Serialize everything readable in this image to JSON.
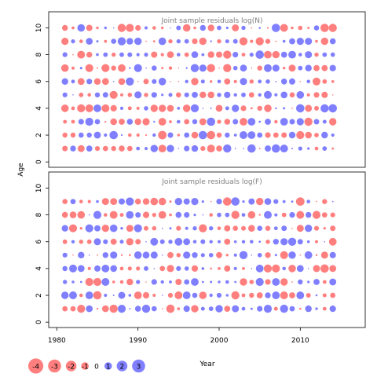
{
  "colors": {
    "positive": "#0000FF",
    "negative": "#FF0000",
    "frame": "#000000",
    "title": "#808080"
  },
  "chart_data": [
    {
      "type": "scatter",
      "subtype": "bubble",
      "title": "Joint sample residuals log(N)",
      "ylabel": "Age",
      "xlabel": "",
      "x_years": [
        1981,
        2014
      ],
      "y_ages": [
        1,
        10
      ],
      "xlim": [
        1979,
        2018
      ],
      "ylim": [
        -0.4,
        11.2
      ],
      "yticks": [
        "0",
        "2",
        "4",
        "6",
        "8",
        "10"
      ],
      "xticks_shown": false,
      "grid": false,
      "note": "one bubble per year and age; size = |residual|, blue positive, red negative",
      "residual_seed": 11
    },
    {
      "type": "scatter",
      "subtype": "bubble",
      "title": "Joint sample residuals log(F)",
      "ylabel": "",
      "xlabel": "Year",
      "x_years": [
        1981,
        2014
      ],
      "y_ages": [
        1,
        9
      ],
      "xlim": [
        1979,
        2018
      ],
      "ylim": [
        -0.4,
        11.2
      ],
      "yticks": [
        "0",
        "2",
        "4",
        "6",
        "8",
        "10"
      ],
      "xticks": [
        "1980",
        "1990",
        "2000",
        "2010"
      ],
      "xtick_values": [
        1980,
        1990,
        2000,
        2010
      ],
      "grid": false,
      "residual_seed": 29
    }
  ],
  "shared_ylabel": "Age",
  "legend": {
    "placement": "bottom-left",
    "entries": [
      {
        "label": "-4",
        "value": -4
      },
      {
        "label": "-3",
        "value": -3
      },
      {
        "label": "-2",
        "value": -2
      },
      {
        "label": "-1",
        "value": -1
      },
      {
        "label": "0",
        "value": 0
      },
      {
        "label": "1",
        "value": 1
      },
      {
        "label": "2",
        "value": 2
      },
      {
        "label": "3",
        "value": 3
      }
    ]
  }
}
